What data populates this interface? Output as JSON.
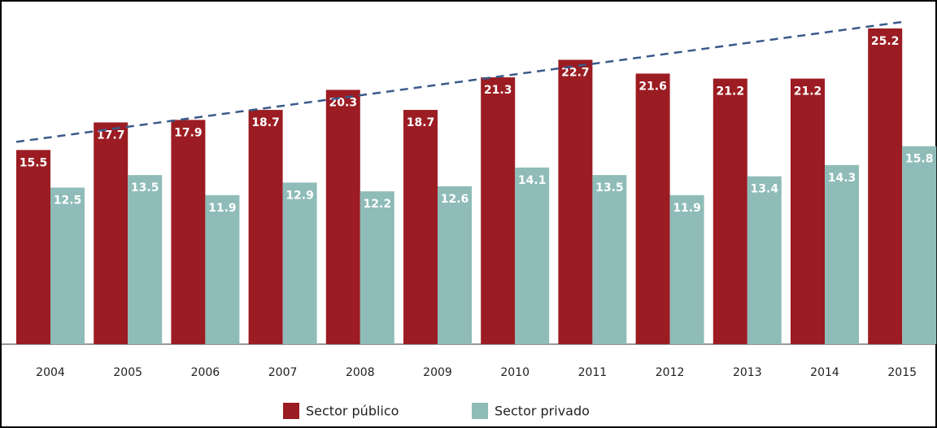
{
  "chart_data": {
    "type": "bar",
    "categories": [
      "2004",
      "2005",
      "2006",
      "2007",
      "2008",
      "2009",
      "2010",
      "2011",
      "2012",
      "2013",
      "2014",
      "2015"
    ],
    "series": [
      {
        "name": "Sector público",
        "color": "#9b1c22",
        "values": [
          15.5,
          17.7,
          17.9,
          18.7,
          20.3,
          18.7,
          21.3,
          22.7,
          21.6,
          21.2,
          21.2,
          25.2
        ]
      },
      {
        "name": "Sector privado",
        "color": "#8fbcb8",
        "values": [
          12.5,
          13.5,
          11.9,
          12.9,
          12.2,
          12.6,
          14.1,
          13.5,
          11.9,
          13.4,
          14.3,
          15.8
        ]
      }
    ]
  }
}
